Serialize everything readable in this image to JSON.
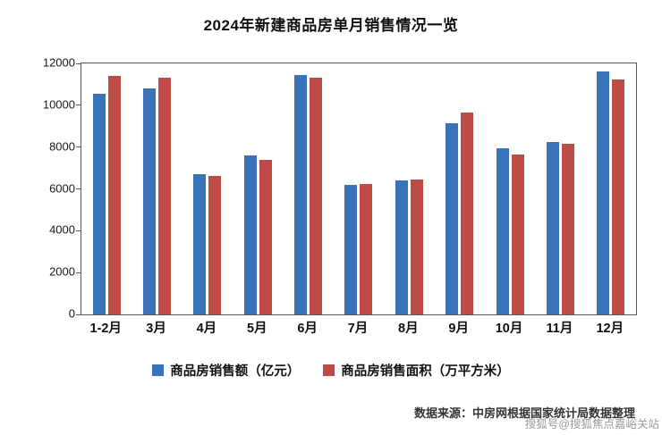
{
  "title": "2024年新建商品房单月销售情况一览",
  "chart_data": {
    "type": "bar",
    "title": "2024年新建商品房单月销售情况一览",
    "categories": [
      "1-2月",
      "3月",
      "4月",
      "5月",
      "6月",
      "7月",
      "8月",
      "9月",
      "10月",
      "11月",
      "12月"
    ],
    "series": [
      {
        "name": "商品房销售额（亿元）",
        "color": "#3A73B9",
        "values": [
          10550,
          10800,
          6700,
          7600,
          11450,
          6200,
          6400,
          9150,
          7950,
          8250,
          11600
        ]
      },
      {
        "name": "商品房销售面积（万平方米）",
        "color": "#BE4B48",
        "values": [
          11400,
          11300,
          6600,
          7400,
          11300,
          6250,
          6450,
          9650,
          7650,
          8150,
          11250
        ]
      }
    ],
    "ylim": [
      0,
      12000
    ],
    "yticks": [
      0,
      2000,
      4000,
      6000,
      8000,
      10000,
      12000
    ],
    "xlabel": "",
    "ylabel": "",
    "grid": false,
    "legend_position": "bottom"
  },
  "footer": {
    "source": "数据来源：中房网根据国家统计局数据整理",
    "watermark": "搜狐号@搜狐焦点嘉峪关站"
  }
}
